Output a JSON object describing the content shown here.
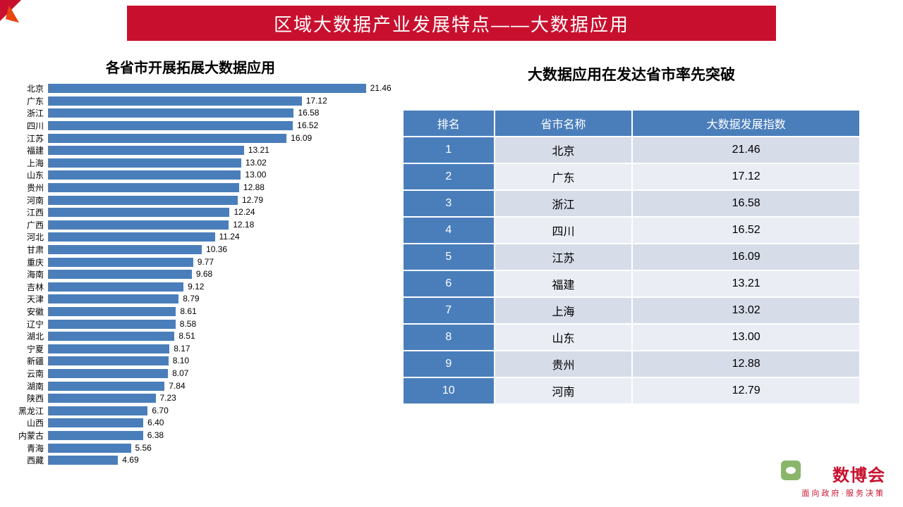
{
  "header": {
    "title": "区域大数据产业发展特点——大数据应用",
    "bg_color": "#c8102e",
    "text_color": "#ffffff"
  },
  "bar_chart": {
    "title": "各省市开展拓展大数据应用",
    "type": "horizontal-bar",
    "xlim_max": 22,
    "bar_color": "#4a7ebb",
    "label_fontsize": 12,
    "value_fontsize": 12,
    "items": [
      {
        "label": "北京",
        "value": 21.46
      },
      {
        "label": "广东",
        "value": 17.12
      },
      {
        "label": "浙江",
        "value": 16.58
      },
      {
        "label": "四川",
        "value": 16.52
      },
      {
        "label": "江苏",
        "value": 16.09
      },
      {
        "label": "福建",
        "value": 13.21
      },
      {
        "label": "上海",
        "value": 13.02
      },
      {
        "label": "山东",
        "value": 13.0
      },
      {
        "label": "贵州",
        "value": 12.88
      },
      {
        "label": "河南",
        "value": 12.79
      },
      {
        "label": "江西",
        "value": 12.24
      },
      {
        "label": "广西",
        "value": 12.18
      },
      {
        "label": "河北",
        "value": 11.24
      },
      {
        "label": "甘肃",
        "value": 10.36
      },
      {
        "label": "重庆",
        "value": 9.77
      },
      {
        "label": "海南",
        "value": 9.68
      },
      {
        "label": "吉林",
        "value": 9.12
      },
      {
        "label": "天津",
        "value": 8.79
      },
      {
        "label": "安徽",
        "value": 8.61
      },
      {
        "label": "辽宁",
        "value": 8.58
      },
      {
        "label": "湖北",
        "value": 8.51
      },
      {
        "label": "宁夏",
        "value": 8.17
      },
      {
        "label": "新疆",
        "value": 8.1
      },
      {
        "label": "云南",
        "value": 8.07
      },
      {
        "label": "湖南",
        "value": 7.84
      },
      {
        "label": "陕西",
        "value": 7.23
      },
      {
        "label": "黑龙江",
        "value": 6.7
      },
      {
        "label": "山西",
        "value": 6.4
      },
      {
        "label": "内蒙古",
        "value": 6.38
      },
      {
        "label": "青海",
        "value": 5.56
      },
      {
        "label": "西藏",
        "value": 4.69
      }
    ]
  },
  "rank_table": {
    "title": "大数据应用在发达省市率先突破",
    "header_bg": "#4a7ebb",
    "header_color": "#ffffff",
    "rank_bg": "#4a7ebb",
    "row_odd_bg": "#d6dce8",
    "row_even_bg": "#eaedf4",
    "columns": [
      "排名",
      "省市名称",
      "大数据发展指数"
    ],
    "rows": [
      {
        "rank": "1",
        "name": "北京",
        "index": "21.46"
      },
      {
        "rank": "2",
        "name": "广东",
        "index": "17.12"
      },
      {
        "rank": "3",
        "name": "浙江",
        "index": "16.58"
      },
      {
        "rank": "4",
        "name": "四川",
        "index": "16.52"
      },
      {
        "rank": "5",
        "name": "江苏",
        "index": "16.09"
      },
      {
        "rank": "6",
        "name": "福建",
        "index": "13.21"
      },
      {
        "rank": "7",
        "name": "上海",
        "index": "13.02"
      },
      {
        "rank": "8",
        "name": "山东",
        "index": "13.00"
      },
      {
        "rank": "9",
        "name": "贵州",
        "index": "12.88"
      },
      {
        "rank": "10",
        "name": "河南",
        "index": "12.79"
      }
    ]
  },
  "footer": {
    "logo_main": "数博会",
    "logo_sub": "面向政府·服务决策",
    "logo_color": "#c8102e"
  }
}
